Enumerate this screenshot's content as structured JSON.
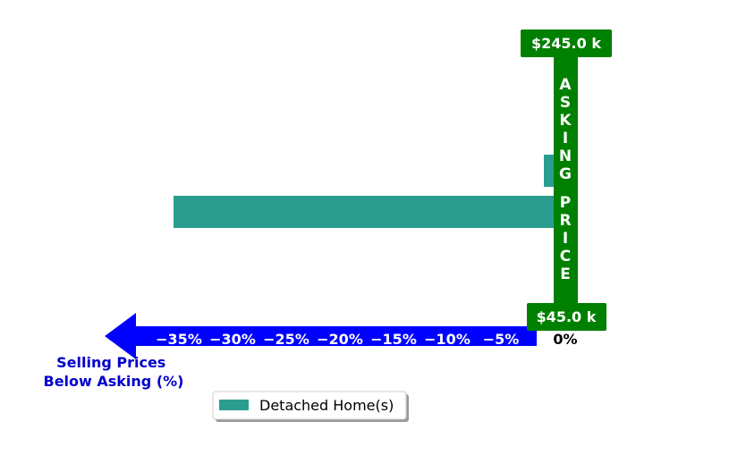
{
  "chart_data": {
    "type": "bar",
    "orientation": "horizontal",
    "series": [
      {
        "name": "Detached Home(s)",
        "color": "#2a9d8f",
        "values": [
          -1.0,
          -35.5
        ]
      }
    ],
    "x_ticks": [
      -35,
      -30,
      -25,
      -20,
      -15,
      -10,
      -5
    ],
    "x_tick_labels": [
      "−35%",
      "−30%",
      "−25%",
      "−20%",
      "−15%",
      "−10%",
      "−5%"
    ],
    "zero_label": "0%",
    "xlabel": "Selling Prices\nBelow Asking (%)",
    "xlim": [
      -38,
      2
    ],
    "asking_price_label": "ASKING PRICE",
    "price_top_label": "$245.0 k",
    "price_bottom_label": "$45.0 k",
    "legend_position": "bottom-center",
    "colors": {
      "bar": "#2a9d8f",
      "asking_band": "#008000",
      "axis_arrow": "#0000ff",
      "xlabel": "#0000cc"
    }
  }
}
